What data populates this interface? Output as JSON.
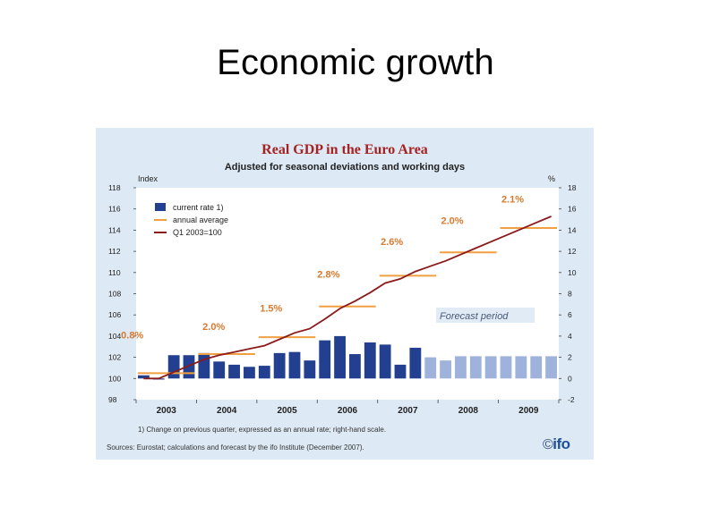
{
  "slide": {
    "title": "Economic growth"
  },
  "logo": {
    "symbol": "©",
    "text": "ifo"
  },
  "colors": {
    "panel_background": "#dde9f4",
    "plot_background": "#ffffff",
    "bar_actual": "#22408f",
    "bar_forecast": "#9fb2dc",
    "annual_average": "#f0a040",
    "index_line": "#8b1a1a",
    "annotation_text": "#d77a30",
    "title_text": "#a52222"
  },
  "chart_data": {
    "type": "bar",
    "title": "Real GDP in the Euro Area",
    "subtitle": "Adjusted for seasonal deviations and working days",
    "left_axis": {
      "label": "Index",
      "ylim": [
        98,
        118
      ],
      "ticks": [
        98,
        100,
        102,
        104,
        106,
        108,
        110,
        112,
        114,
        116,
        118
      ]
    },
    "right_axis": {
      "label": "%",
      "ylim": [
        -2,
        18
      ],
      "ticks": [
        -2,
        0,
        2,
        4,
        6,
        8,
        10,
        12,
        14,
        16,
        18
      ]
    },
    "x_axis": {
      "categories": [
        "2003",
        "2004",
        "2005",
        "2006",
        "2007",
        "2008",
        "2009"
      ],
      "xlim": [
        2003,
        2010
      ]
    },
    "grid": false,
    "legend": {
      "placement": "top-left",
      "entries": [
        {
          "key": "bar",
          "label": "current rate 1)"
        },
        {
          "key": "avg",
          "label": "annual average"
        },
        {
          "key": "line",
          "label": "Q1 2003=100"
        }
      ]
    },
    "series": [
      {
        "name": "current rate 1)",
        "type": "bar",
        "axis": "right",
        "x": [
          2003.0,
          2003.25,
          2003.5,
          2003.75,
          2004.0,
          2004.25,
          2004.5,
          2004.75,
          2005.0,
          2005.25,
          2005.5,
          2005.75,
          2006.0,
          2006.25,
          2006.5,
          2006.75,
          2007.0,
          2007.25,
          2007.5,
          2007.75,
          2008.0,
          2008.25,
          2008.5,
          2008.75,
          2009.0,
          2009.25,
          2009.5,
          2009.75
        ],
        "values": [
          0.3,
          -0.1,
          2.2,
          2.2,
          2.4,
          1.6,
          1.3,
          1.1,
          1.2,
          2.4,
          2.5,
          1.7,
          3.6,
          4.0,
          2.3,
          3.4,
          3.2,
          1.3,
          2.9,
          2.0,
          1.7,
          2.1,
          2.1,
          2.1,
          2.1,
          2.1,
          2.1,
          2.1
        ],
        "forecast": [
          false,
          false,
          false,
          false,
          false,
          false,
          false,
          false,
          false,
          false,
          false,
          false,
          false,
          false,
          false,
          false,
          false,
          false,
          false,
          true,
          true,
          true,
          true,
          true,
          true,
          true,
          true,
          true
        ]
      },
      {
        "name": "annual average",
        "type": "step",
        "axis": "left",
        "segments": [
          {
            "year": 2003,
            "value": 100.5
          },
          {
            "year": 2004,
            "value": 102.3
          },
          {
            "year": 2005,
            "value": 103.9
          },
          {
            "year": 2006,
            "value": 106.8
          },
          {
            "year": 2007,
            "value": 109.7
          },
          {
            "year": 2008,
            "value": 111.9
          },
          {
            "year": 2009,
            "value": 114.2
          }
        ]
      },
      {
        "name": "Q1 2003=100",
        "type": "line",
        "axis": "left",
        "x": [
          2003.0,
          2003.25,
          2003.5,
          2003.75,
          2004.0,
          2004.25,
          2004.5,
          2004.75,
          2005.0,
          2005.25,
          2005.5,
          2005.75,
          2006.0,
          2006.25,
          2006.5,
          2006.75,
          2007.0,
          2007.25,
          2007.5,
          2007.75,
          2008.0,
          2008.25,
          2008.5,
          2008.75,
          2009.0,
          2009.25,
          2009.5,
          2009.75
        ],
        "values": [
          100.0,
          100.0,
          100.6,
          101.2,
          101.8,
          102.2,
          102.5,
          102.8,
          103.1,
          103.7,
          104.3,
          104.7,
          105.6,
          106.6,
          107.3,
          108.1,
          109.0,
          109.4,
          110.1,
          110.6,
          111.1,
          111.7,
          112.3,
          112.9,
          113.5,
          114.1,
          114.7,
          115.3
        ]
      }
    ],
    "annotations": [
      {
        "text": "0.8%",
        "x": 2002.75,
        "y": 103.8
      },
      {
        "text": "2.0%",
        "x": 2004.1,
        "y": 104.6
      },
      {
        "text": "1.5%",
        "x": 2005.05,
        "y": 106.3
      },
      {
        "text": "2.8%",
        "x": 2006.0,
        "y": 109.5
      },
      {
        "text": "2.6%",
        "x": 2007.05,
        "y": 112.6
      },
      {
        "text": "2.0%",
        "x": 2008.05,
        "y": 114.6
      },
      {
        "text": "2.1%",
        "x": 2009.05,
        "y": 116.6
      }
    ],
    "forecast_label": "Forecast period",
    "footnote": "1) Change on previous quarter, expressed as an annual rate; right-hand scale.",
    "source": "Sources: Eurostat; calculations and forecast by the ifo Institute (December 2007)."
  }
}
